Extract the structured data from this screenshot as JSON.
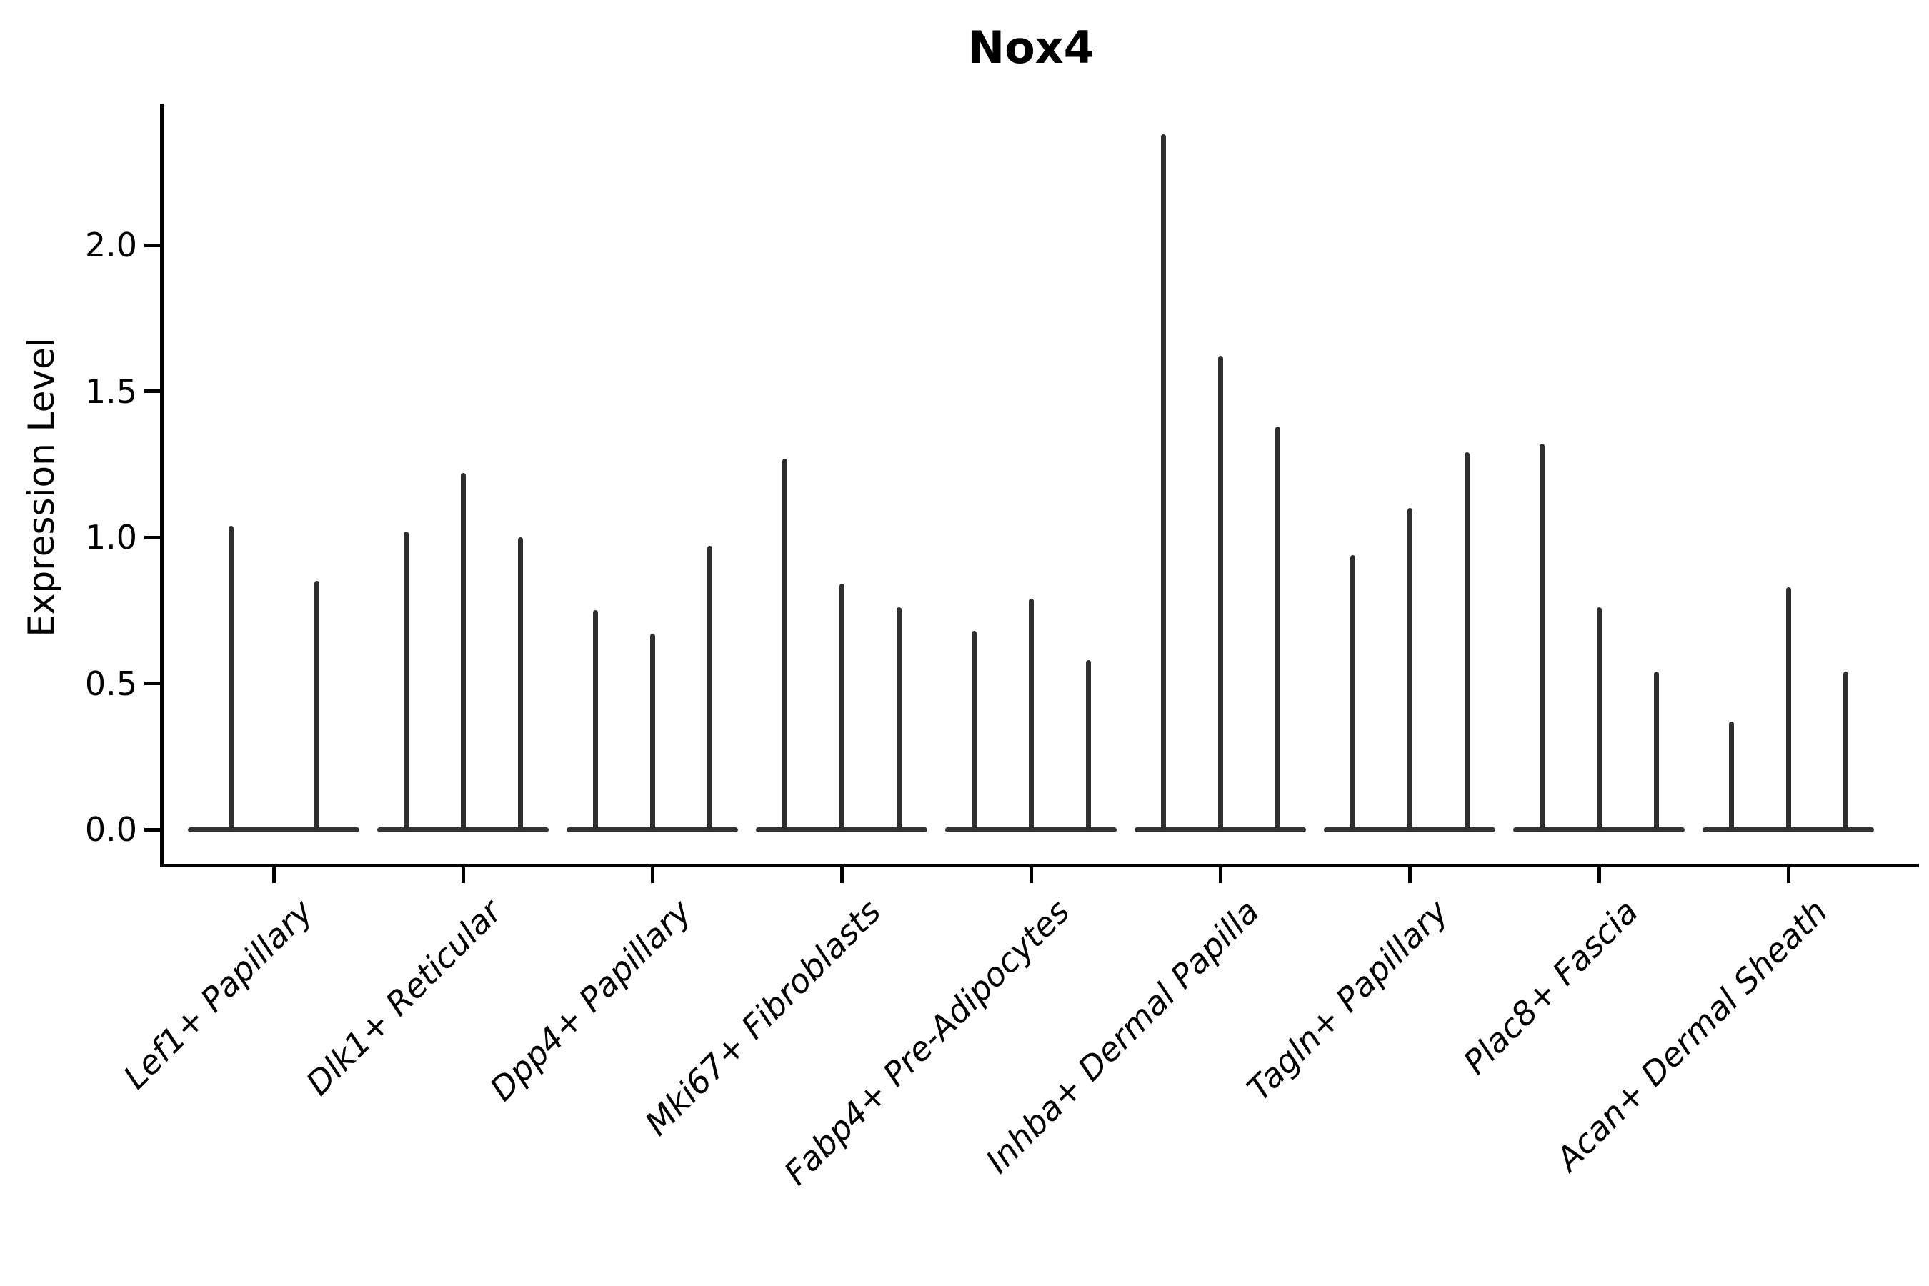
{
  "title": "Nox4",
  "axes": {
    "ylabel": "Expression Level",
    "ytick_labels": [
      "0.0",
      "0.5",
      "1.0",
      "1.5",
      "2.0"
    ]
  },
  "style": {
    "violin_color": "#2e2e2e",
    "baseline_color": "#333333",
    "axis_color": "#000000",
    "background_color": "#ffffff"
  },
  "chart_data": {
    "type": "violin",
    "title": "Nox4",
    "xlabel": "",
    "ylabel": "Expression Level",
    "ylim": [
      0,
      2.45
    ],
    "yticks": [
      0.0,
      0.5,
      1.0,
      1.5,
      2.0
    ],
    "grid": false,
    "legend": "none",
    "orientation": "vertical",
    "shape_note": "needle-thin violins with flat base at 0",
    "categories": [
      "Lef1+ Papillary",
      "Dlk1+ Reticular",
      "Dpp4+ Papillary",
      "Mki67+ Fibroblasts",
      "Fabp4+ Pre-Adipocytes",
      "Inhba+ Dermal Papilla",
      "Tagln+ Papillary",
      "Plac8+ Fascia",
      "Acan+ Dermal Sheath"
    ],
    "groups": [
      {
        "category": "Lef1+ Papillary",
        "violin_maxima": [
          1.04,
          0.85
        ]
      },
      {
        "category": "Dlk1+ Reticular",
        "violin_maxima": [
          1.02,
          1.22,
          1.0
        ]
      },
      {
        "category": "Dpp4+ Papillary",
        "violin_maxima": [
          0.75,
          0.67,
          0.97
        ]
      },
      {
        "category": "Mki67+ Fibroblasts",
        "violin_maxima": [
          1.27,
          0.84,
          0.76
        ]
      },
      {
        "category": "Fabp4+ Pre-Adipocytes",
        "violin_maxima": [
          0.68,
          0.79,
          0.58
        ]
      },
      {
        "category": "Inhba+ Dermal Papilla",
        "violin_maxima": [
          2.38,
          1.62,
          1.38
        ]
      },
      {
        "category": "Tagln+ Papillary",
        "violin_maxima": [
          0.94,
          1.1,
          1.29
        ]
      },
      {
        "category": "Plac8+ Fascia",
        "violin_maxima": [
          1.32,
          0.76,
          0.54
        ]
      },
      {
        "category": "Acan+ Dermal Sheath",
        "violin_maxima": [
          0.37,
          0.83,
          0.54
        ]
      }
    ]
  }
}
